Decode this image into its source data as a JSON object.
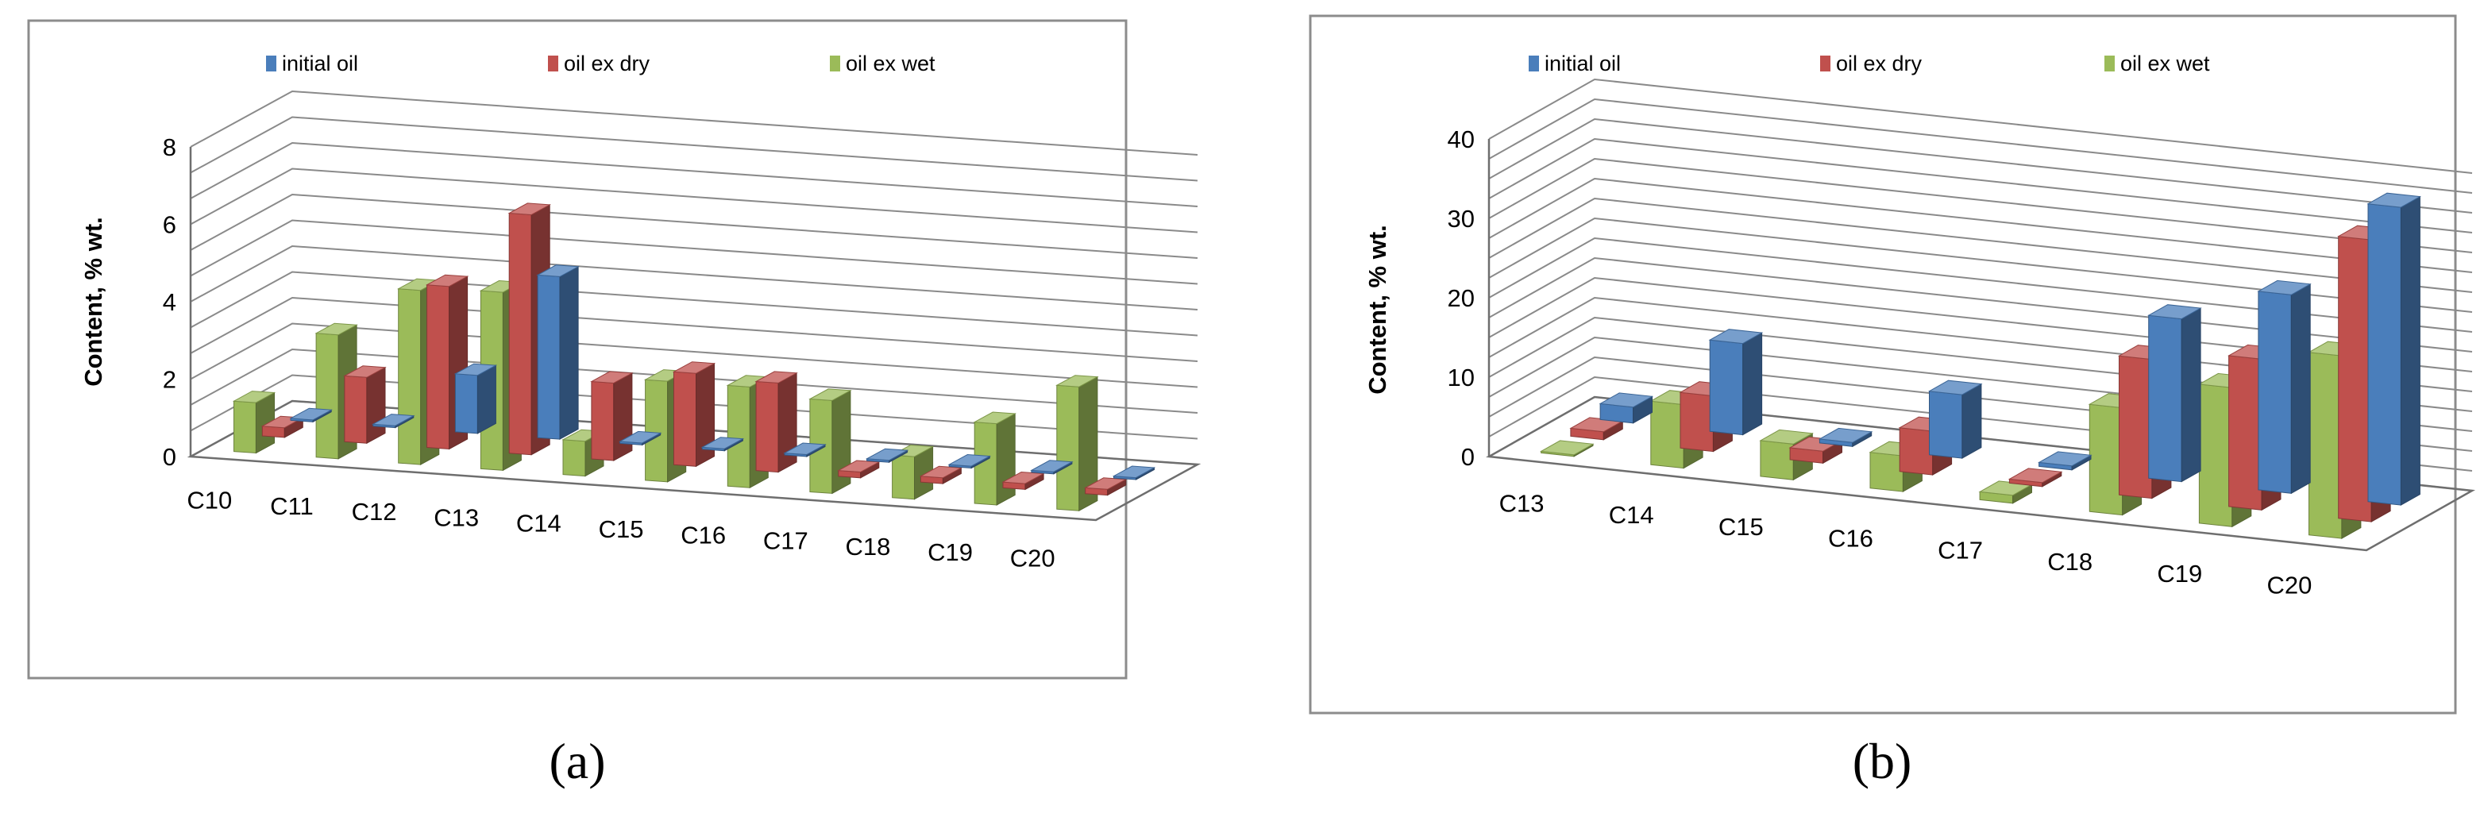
{
  "chart_data": [
    {
      "type": "bar",
      "panel": "a",
      "caption": "(a)",
      "title": "",
      "xlabel": "",
      "ylabel": "Content, % wt.",
      "ylim": [
        0,
        8
      ],
      "yticks": [
        "0",
        "2",
        "4",
        "6",
        "8"
      ],
      "legend_position": "top",
      "categories": [
        "C10",
        "C11",
        "C12",
        "C13",
        "C14",
        "C15",
        "C16",
        "C17",
        "C18",
        "C19",
        "C20"
      ],
      "series": [
        {
          "name": "initial oil",
          "color": "#4A7EBB",
          "values": [
            0.05,
            0.05,
            1.5,
            4.2,
            0.05,
            0.05,
            0.05,
            0.05,
            0.05,
            0.05,
            0.05
          ]
        },
        {
          "name": "oil ex dry",
          "color": "#C0504D",
          "values": [
            0.25,
            1.7,
            4.2,
            6.2,
            2.0,
            2.4,
            2.3,
            0.15,
            0.15,
            0.15,
            0.15
          ]
        },
        {
          "name": "oil ex wet",
          "color": "#9BBB59",
          "values": [
            1.3,
            3.2,
            4.5,
            4.6,
            0.9,
            2.6,
            2.6,
            2.4,
            1.1,
            2.1,
            3.2
          ]
        }
      ]
    },
    {
      "type": "bar",
      "panel": "b",
      "caption": "(b)",
      "title": "",
      "xlabel": "",
      "ylabel": "Content, % wt.",
      "ylim": [
        0,
        40
      ],
      "yticks": [
        "0",
        "10",
        "20",
        "30",
        "40"
      ],
      "legend_position": "top",
      "categories": [
        "C13",
        "C14",
        "C15",
        "C16",
        "C17",
        "C18",
        "C19",
        "C20"
      ],
      "series": [
        {
          "name": "initial oil",
          "color": "#4A7EBB",
          "values": [
            2.0,
            11.5,
            0.5,
            8.0,
            0.5,
            20.5,
            25.0,
            37.5
          ]
        },
        {
          "name": "oil ex dry",
          "color": "#C0504D",
          "values": [
            1.0,
            7.0,
            1.5,
            5.5,
            0.5,
            17.5,
            19.0,
            35.5
          ]
        },
        {
          "name": "oil ex wet",
          "color": "#9BBB59",
          "values": [
            0.2,
            8.0,
            4.5,
            4.5,
            1.0,
            13.5,
            17.5,
            23.0
          ]
        }
      ]
    }
  ]
}
